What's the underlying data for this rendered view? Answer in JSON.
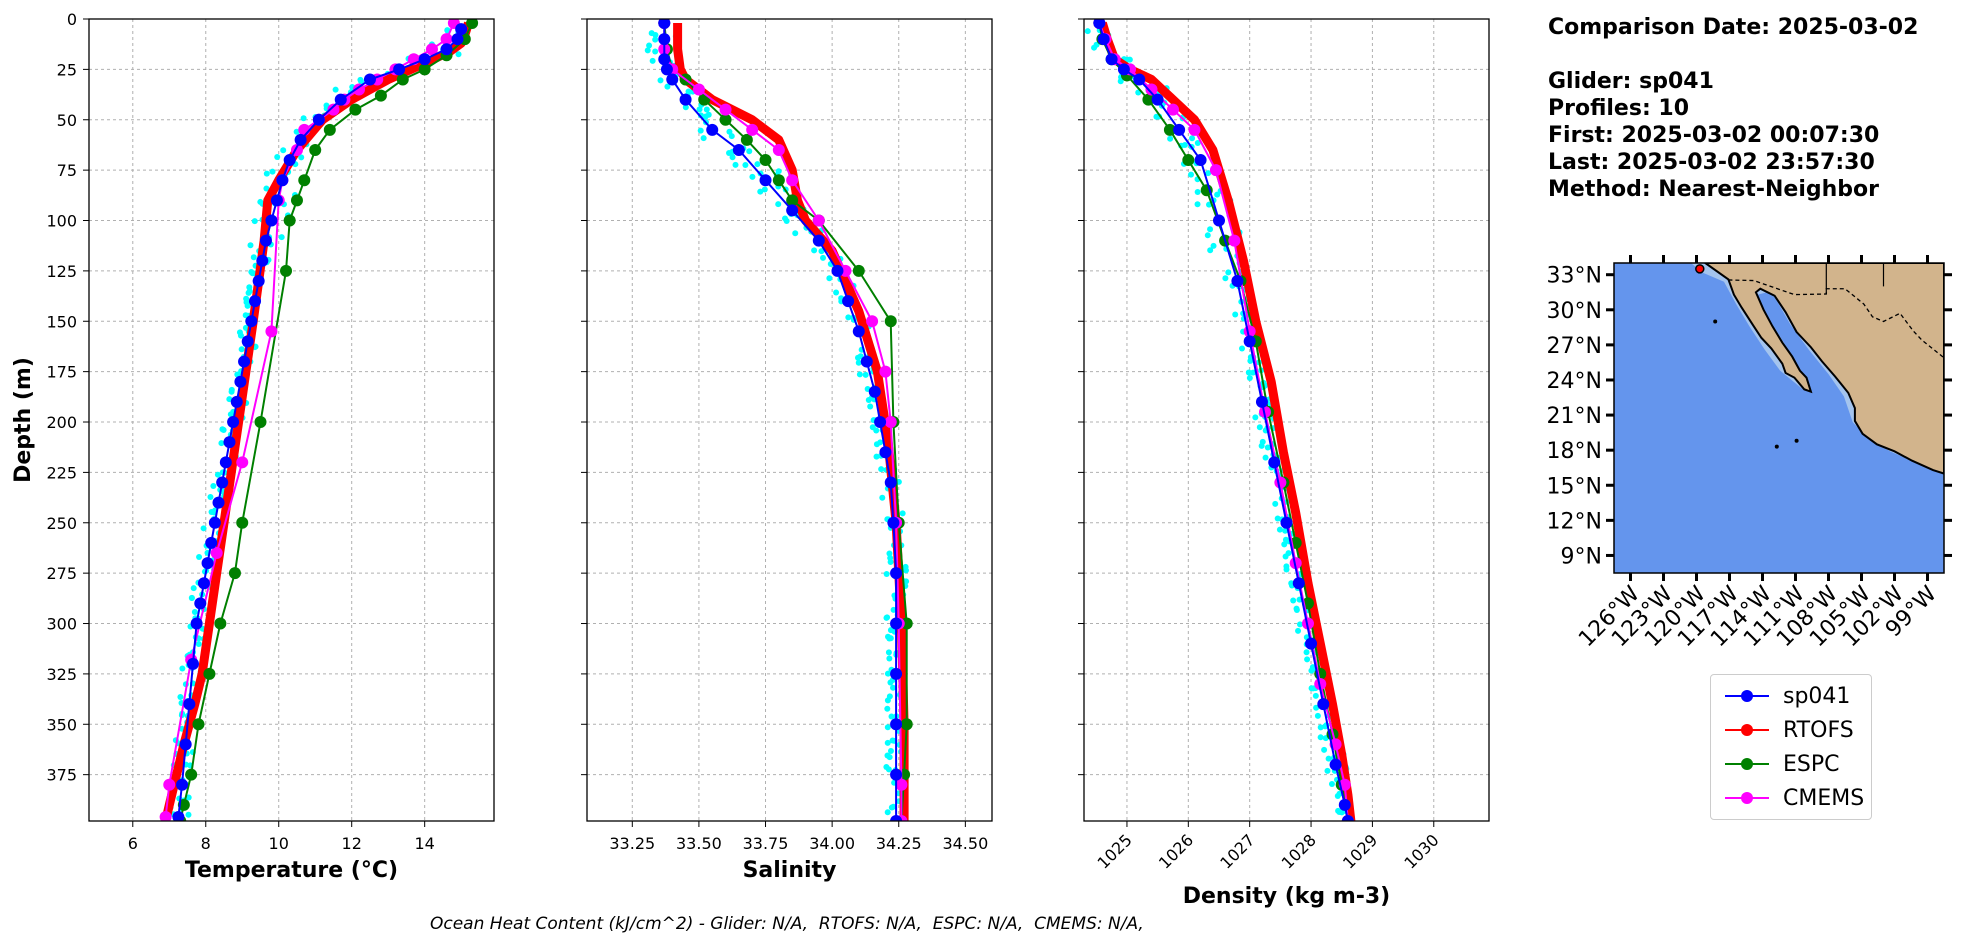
{
  "info": {
    "comparison_date": "Comparison Date: 2025-03-02",
    "glider": "Glider: sp041",
    "profiles": "Profiles: 10",
    "first": "First: 2025-03-02 00:07:30",
    "last": "Last: 2025-03-02 23:57:30",
    "method": "Method: Nearest-Neighbor"
  },
  "footer": "Ocean Heat Content (kJ/cm^2) - Glider: N/A,  RTOFS: N/A,  ESPC: N/A,  CMEMS: N/A,",
  "colors": {
    "sp041": "#0000ff",
    "RTOFS": "#ff0000",
    "ESPC": "#008000",
    "CMEMS": "#ff00ff",
    "raw": "#00ffff",
    "ocean": "#6495ed",
    "shelf": "#a4c4ee",
    "land": "#d2b48c"
  },
  "legend": [
    {
      "label": "sp041",
      "color": "#0000ff"
    },
    {
      "label": "RTOFS",
      "color": "#ff0000"
    },
    {
      "label": "ESPC",
      "color": "#008000"
    },
    {
      "label": "CMEMS",
      "color": "#ff00ff"
    }
  ],
  "chart_data": [
    {
      "type": "line",
      "xlabel": "Temperature (°C)",
      "ylabel": "Depth (m)",
      "xlim": [
        4.8,
        15.9
      ],
      "ylim": [
        398,
        0
      ],
      "xticks": [
        6,
        8,
        10,
        12,
        14
      ],
      "yticks": [
        0,
        25,
        50,
        75,
        100,
        125,
        150,
        175,
        200,
        225,
        250,
        275,
        300,
        325,
        350,
        375
      ],
      "grid": true,
      "series": [
        {
          "name": "sp041",
          "x": [
            15.0,
            14.9,
            14.6,
            14.0,
            13.3,
            12.5,
            11.7,
            11.1,
            10.6,
            10.3,
            10.1,
            9.95,
            9.8,
            9.65,
            9.55,
            9.45,
            9.35,
            9.25,
            9.15,
            9.05,
            8.95,
            8.85,
            8.75,
            8.65,
            8.55,
            8.45,
            8.35,
            8.25,
            8.15,
            8.05,
            7.95,
            7.85,
            7.75,
            7.65,
            7.55,
            7.45,
            7.35,
            7.25
          ],
          "y": [
            5,
            10,
            15,
            20,
            25,
            30,
            40,
            50,
            60,
            70,
            80,
            90,
            100,
            110,
            120,
            130,
            140,
            150,
            160,
            170,
            180,
            190,
            200,
            210,
            220,
            230,
            240,
            250,
            260,
            270,
            280,
            290,
            300,
            320,
            340,
            360,
            380,
            396
          ]
        },
        {
          "name": "RTOFS",
          "x": [
            15.2,
            15.1,
            15.0,
            14.7,
            14.0,
            13.0,
            12.0,
            11.2,
            10.5,
            10.0,
            9.7,
            9.6,
            9.45,
            9.3,
            9.1,
            8.9,
            8.7,
            8.5,
            8.3,
            8.1,
            7.9,
            7.7,
            7.4,
            7.2,
            7.0,
            6.9
          ],
          "y": [
            2,
            8,
            12,
            16,
            22,
            30,
            40,
            50,
            65,
            80,
            90,
            110,
            130,
            150,
            175,
            200,
            225,
            250,
            275,
            300,
            325,
            340,
            360,
            375,
            390,
            398
          ]
        },
        {
          "name": "ESPC",
          "x": [
            15.3,
            15.1,
            14.6,
            14.0,
            13.4,
            12.8,
            12.1,
            11.4,
            11.0,
            10.7,
            10.5,
            10.3,
            10.2,
            9.5,
            9.0,
            8.8,
            8.4,
            8.1,
            7.8,
            7.6,
            7.4,
            7.3
          ],
          "y": [
            2,
            10,
            18,
            25,
            30,
            38,
            45,
            55,
            65,
            80,
            90,
            100,
            125,
            200,
            250,
            275,
            300,
            325,
            350,
            375,
            390,
            398
          ]
        },
        {
          "name": "CMEMS",
          "x": [
            14.8,
            14.6,
            14.2,
            13.7,
            13.2,
            12.7,
            12.2,
            11.8,
            11.5,
            11.1,
            10.7,
            10.5,
            10.1,
            10.0,
            9.8,
            9.0,
            8.3,
            7.6,
            7.0,
            6.9
          ],
          "y": [
            2,
            10,
            15,
            20,
            25,
            30,
            35,
            40,
            45,
            50,
            55,
            65,
            80,
            90,
            155,
            220,
            265,
            318,
            380,
            396
          ]
        }
      ]
    },
    {
      "type": "line",
      "xlabel": "Salinity",
      "xlim": [
        33.08,
        34.6
      ],
      "ylim": [
        398,
        0
      ],
      "xticks": [
        33.25,
        33.5,
        33.75,
        34.0,
        34.25,
        34.5
      ],
      "xticklabels": [
        "33.25",
        "33.50",
        "33.75",
        "34.00",
        "34.25",
        "34.50"
      ],
      "grid": true,
      "series": [
        {
          "name": "sp041",
          "x": [
            33.37,
            33.37,
            33.37,
            33.38,
            33.4,
            33.45,
            33.55,
            33.65,
            33.75,
            33.85,
            33.95,
            34.02,
            34.06,
            34.1,
            34.13,
            34.16,
            34.18,
            34.2,
            34.22,
            34.23,
            34.24,
            34.24,
            34.24,
            34.24,
            34.24,
            34.24
          ],
          "y": [
            2,
            10,
            20,
            25,
            30,
            40,
            55,
            65,
            80,
            95,
            110,
            125,
            140,
            155,
            170,
            185,
            200,
            215,
            230,
            250,
            275,
            300,
            325,
            350,
            375,
            398
          ]
        },
        {
          "name": "RTOFS",
          "x": [
            33.42,
            33.42,
            33.43,
            33.45,
            33.55,
            33.7,
            33.8,
            33.85,
            33.87,
            33.9,
            34.0,
            34.1,
            34.17,
            34.21,
            34.24,
            34.26,
            34.27,
            34.27
          ],
          "y": [
            2,
            15,
            25,
            30,
            40,
            50,
            60,
            75,
            90,
            100,
            115,
            145,
            175,
            210,
            250,
            300,
            350,
            398
          ]
        },
        {
          "name": "ESPC",
          "x": [
            33.37,
            33.38,
            33.4,
            33.45,
            33.52,
            33.6,
            33.68,
            33.75,
            33.8,
            33.85,
            33.95,
            34.1,
            34.22,
            34.23,
            34.25,
            34.28,
            34.28,
            34.27,
            34.26
          ],
          "y": [
            2,
            15,
            25,
            30,
            40,
            50,
            60,
            70,
            80,
            90,
            100,
            125,
            150,
            200,
            250,
            300,
            350,
            375,
            398
          ]
        },
        {
          "name": "CMEMS",
          "x": [
            33.37,
            33.37,
            33.4,
            33.5,
            33.6,
            33.7,
            33.8,
            33.85,
            33.95,
            34.05,
            34.15,
            34.2,
            34.22,
            34.24,
            34.25,
            34.26,
            34.26
          ],
          "y": [
            2,
            15,
            25,
            35,
            45,
            55,
            65,
            80,
            100,
            125,
            150,
            175,
            200,
            250,
            300,
            380,
            398
          ]
        }
      ]
    },
    {
      "type": "line",
      "xlabel": "Density (kg m-3)",
      "xlim": [
        1024.3,
        1030.9
      ],
      "ylim": [
        398,
        0
      ],
      "xticks": [
        1025,
        1026,
        1027,
        1028,
        1029,
        1030
      ],
      "grid": true,
      "series": [
        {
          "name": "sp041",
          "x": [
            1024.55,
            1024.62,
            1024.75,
            1024.95,
            1025.2,
            1025.5,
            1025.85,
            1026.2,
            1026.5,
            1026.8,
            1027.0,
            1027.2,
            1027.4,
            1027.6,
            1027.8,
            1028.0,
            1028.2,
            1028.4,
            1028.55,
            1028.6
          ],
          "y": [
            2,
            10,
            20,
            25,
            30,
            40,
            55,
            70,
            100,
            130,
            160,
            190,
            220,
            250,
            280,
            310,
            340,
            370,
            390,
            398
          ]
        },
        {
          "name": "RTOFS",
          "x": [
            1024.6,
            1024.68,
            1024.8,
            1025.05,
            1025.4,
            1025.75,
            1026.1,
            1026.4,
            1026.65,
            1026.9,
            1027.1,
            1027.35,
            1027.55,
            1027.75,
            1027.95,
            1028.15,
            1028.35,
            1028.5,
            1028.6,
            1028.65
          ],
          "y": [
            2,
            10,
            20,
            25,
            30,
            40,
            50,
            65,
            90,
            120,
            150,
            180,
            215,
            245,
            280,
            310,
            340,
            365,
            385,
            398
          ]
        },
        {
          "name": "ESPC",
          "x": [
            1024.55,
            1024.6,
            1024.75,
            1025.0,
            1025.35,
            1025.7,
            1026.0,
            1026.3,
            1026.6,
            1026.85,
            1027.1,
            1027.3,
            1027.55,
            1027.75,
            1027.95,
            1028.15,
            1028.35,
            1028.5,
            1028.6
          ],
          "y": [
            2,
            10,
            20,
            28,
            40,
            55,
            70,
            85,
            110,
            130,
            160,
            195,
            230,
            260,
            290,
            325,
            355,
            380,
            398
          ]
        },
        {
          "name": "CMEMS",
          "x": [
            1024.55,
            1024.65,
            1024.8,
            1025.05,
            1025.4,
            1025.75,
            1026.1,
            1026.45,
            1026.75,
            1027.0,
            1027.25,
            1027.5,
            1027.75,
            1027.95,
            1028.15,
            1028.4,
            1028.55,
            1028.6
          ],
          "y": [
            2,
            10,
            20,
            25,
            35,
            45,
            55,
            75,
            110,
            155,
            195,
            230,
            270,
            300,
            330,
            360,
            380,
            398
          ]
        }
      ]
    },
    {
      "type": "map",
      "lat_ticks": [
        "33°N",
        "30°N",
        "27°N",
        "24°N",
        "21°N",
        "18°N",
        "15°N",
        "12°N",
        "9°N"
      ],
      "lon_ticks": [
        "126°W",
        "123°W",
        "120°W",
        "117°W",
        "114°W",
        "111°W",
        "108°W",
        "105°W",
        "102°W",
        "99°W"
      ],
      "lat_range": [
        7.5,
        34
      ],
      "lon_range": [
        -127.5,
        -97.5
      ],
      "glider_position": {
        "lon": -119.7,
        "lat": 33.5
      }
    }
  ]
}
